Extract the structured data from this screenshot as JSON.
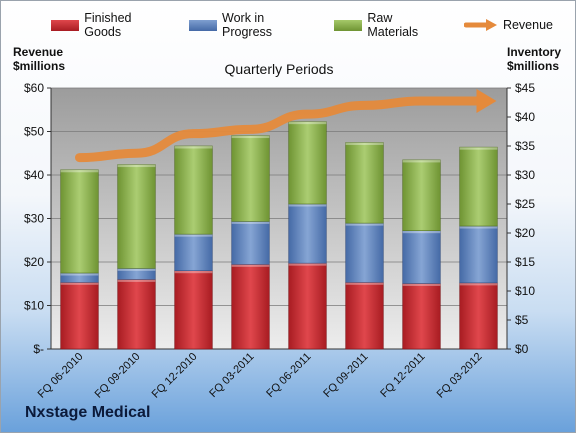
{
  "brand": "Nxstage Medical",
  "chart_data": {
    "type": "bar",
    "title": "Quarterly Periods",
    "stacked": true,
    "categories": [
      "FQ 06-2010",
      "FQ 09-2010",
      "FQ 12-2010",
      "FQ 03-2011",
      "FQ 06-2011",
      "FQ 09-2011",
      "FQ 12-2011",
      "FQ 03-2012"
    ],
    "left_axis": {
      "label_line1": "Revenue",
      "label_line2": "$millions",
      "range": [
        0,
        60
      ],
      "ticks": [
        "$-",
        "$10",
        "$20",
        "$30",
        "$40",
        "$50",
        "$60"
      ]
    },
    "right_axis": {
      "label_line1": "Inventory",
      "label_line2": "$millions",
      "range": [
        0,
        45
      ],
      "ticks": [
        "$0",
        "$5",
        "$10",
        "$15",
        "$20",
        "$25",
        "$30",
        "$35",
        "$40",
        "$45"
      ]
    },
    "series": [
      {
        "name": "Finished Goods",
        "axis": "right",
        "color": "#c8262c",
        "values": [
          11.5,
          12.0,
          13.5,
          14.6,
          14.8,
          11.5,
          11.3,
          11.4
        ]
      },
      {
        "name": "Work in Progress",
        "axis": "right",
        "color": "#5b7fb8",
        "values": [
          1.6,
          1.9,
          6.3,
          7.4,
          10.2,
          10.2,
          9.1,
          9.8
        ]
      },
      {
        "name": "Raw Materials",
        "axis": "right",
        "color": "#8cb046",
        "values": [
          17.8,
          17.9,
          15.2,
          14.8,
          14.2,
          13.9,
          12.2,
          13.6
        ]
      },
      {
        "name": "Revenue",
        "axis": "left",
        "type": "line",
        "color": "#e58a3b",
        "values": [
          44,
          45,
          49.5,
          50.5,
          54,
          56,
          57,
          57
        ]
      }
    ],
    "grid": true,
    "legend_position": "top"
  }
}
